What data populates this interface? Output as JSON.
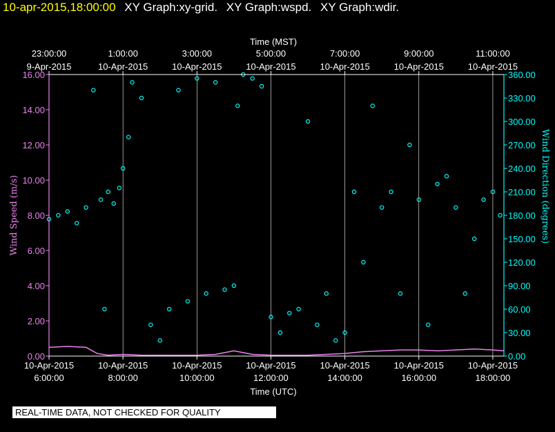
{
  "header": {
    "timestamp": "10-apr-2015,18:00:00",
    "sections": [
      "XY Graph:xy-grid.",
      "XY Graph:wspd.",
      "XY Graph:wdir."
    ]
  },
  "colors": {
    "background": "#000000",
    "axis": "#ffffff",
    "wind_speed": "#ee82ee",
    "wind_direction": "#00ffff",
    "timestamp": "#ffff00"
  },
  "note": "REAL-TIME DATA, NOT CHECKED FOR QUALITY",
  "chart_data": {
    "type": "scatter",
    "title": "",
    "top_axis": {
      "label": "Time (MST)",
      "ticks": [
        {
          "x": 6,
          "time": "23:00:00",
          "date": "9-Apr-2015"
        },
        {
          "x": 8,
          "time": "1:00:00",
          "date": "10-Apr-2015"
        },
        {
          "x": 10,
          "time": "3:00:00",
          "date": "10-Apr-2015"
        },
        {
          "x": 12,
          "time": "5:00:00",
          "date": "10-Apr-2015"
        },
        {
          "x": 14,
          "time": "7:00:00",
          "date": "10-Apr-2015"
        },
        {
          "x": 16,
          "time": "9:00:00",
          "date": "10-Apr-2015"
        },
        {
          "x": 18,
          "time": "11:00:00",
          "date": "10-Apr-2015"
        }
      ]
    },
    "bottom_axis": {
      "label": "Time (UTC)",
      "ticks": [
        {
          "x": 6,
          "date": "10-Apr-2015",
          "time": "6:00:00"
        },
        {
          "x": 8,
          "date": "10-Apr-2015",
          "time": "8:00:00"
        },
        {
          "x": 10,
          "date": "10-Apr-2015",
          "time": "10:00:00"
        },
        {
          "x": 12,
          "date": "10-Apr-2015",
          "time": "12:00:00"
        },
        {
          "x": 14,
          "date": "10-Apr-2015",
          "time": "14:00:00"
        },
        {
          "x": 16,
          "date": "10-Apr-2015",
          "time": "16:00:00"
        },
        {
          "x": 18,
          "date": "10-Apr-2015",
          "time": "18:00:00"
        }
      ]
    },
    "xlim": [
      6,
      18.3
    ],
    "left_axis": {
      "label": "Wind Speed (m/s)",
      "ylim": [
        0,
        16
      ],
      "ticks": [
        "0.00",
        "2.00",
        "4.00",
        "6.00",
        "8.00",
        "10.00",
        "12.00",
        "14.00",
        "16.00"
      ]
    },
    "right_axis": {
      "label": "Wind Direction (degrees)",
      "ylim": [
        0,
        360
      ],
      "ticks": [
        "0.00",
        "30.00",
        "60.00",
        "90.00",
        "120.00",
        "150.00",
        "180.00",
        "210.00",
        "240.00",
        "270.00",
        "300.00",
        "330.00",
        "360.00"
      ]
    },
    "grid": {
      "vertical": true,
      "horizontal": false
    },
    "series": [
      {
        "name": "wspd",
        "axis": "left",
        "style": "line",
        "x": [
          6.0,
          6.5,
          7.0,
          7.3,
          7.6,
          8.0,
          8.5,
          9.0,
          9.5,
          10.0,
          10.5,
          11.0,
          11.5,
          12.0,
          12.5,
          13.0,
          13.5,
          14.0,
          14.5,
          15.0,
          15.5,
          16.0,
          16.5,
          17.0,
          17.5,
          18.0,
          18.3
        ],
        "y": [
          0.5,
          0.55,
          0.5,
          0.15,
          0.05,
          0.1,
          0.05,
          0.05,
          0.05,
          0.05,
          0.1,
          0.3,
          0.1,
          0.05,
          0.05,
          0.05,
          0.1,
          0.15,
          0.25,
          0.3,
          0.35,
          0.35,
          0.3,
          0.35,
          0.4,
          0.35,
          0.3
        ]
      },
      {
        "name": "wdir",
        "axis": "right",
        "style": "circles",
        "x": [
          6.0,
          6.25,
          6.5,
          6.75,
          7.0,
          7.2,
          7.4,
          7.5,
          7.6,
          7.75,
          7.9,
          8.0,
          8.15,
          8.25,
          8.5,
          8.75,
          9.0,
          9.25,
          9.5,
          9.75,
          10.0,
          10.25,
          10.5,
          10.75,
          11.0,
          11.1,
          11.25,
          11.5,
          11.75,
          12.0,
          12.25,
          12.5,
          12.75,
          13.0,
          13.25,
          13.5,
          13.75,
          14.0,
          14.25,
          14.5,
          14.75,
          15.0,
          15.25,
          15.5,
          15.75,
          16.0,
          16.25,
          16.5,
          16.75,
          17.0,
          17.25,
          17.5,
          17.75,
          18.0,
          18.2
        ],
        "y": [
          175,
          180,
          185,
          170,
          190,
          340,
          200,
          60,
          210,
          195,
          215,
          240,
          280,
          350,
          330,
          40,
          20,
          60,
          340,
          70,
          355,
          80,
          350,
          85,
          90,
          320,
          360,
          355,
          345,
          50,
          30,
          55,
          60,
          300,
          40,
          80,
          20,
          30,
          210,
          120,
          320,
          190,
          210,
          80,
          270,
          200,
          40,
          220,
          230,
          190,
          80,
          150,
          200,
          210,
          180
        ]
      }
    ]
  }
}
